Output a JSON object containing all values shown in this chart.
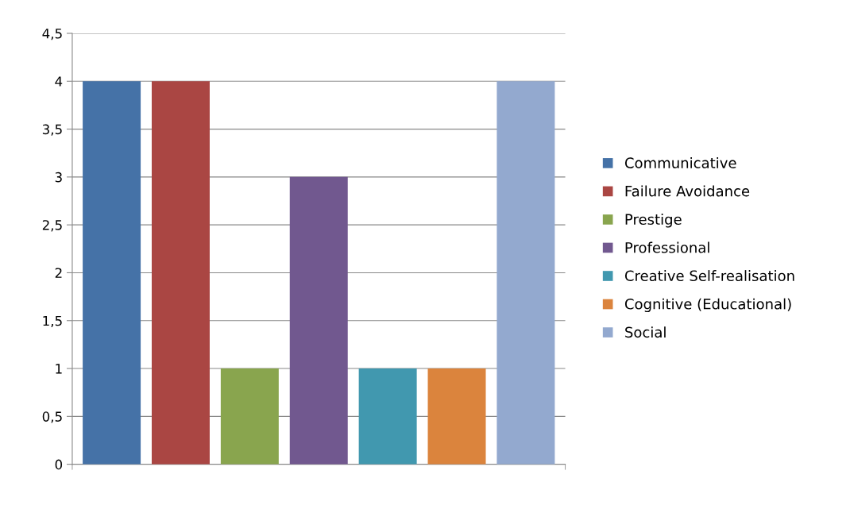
{
  "chart_data": {
    "type": "bar",
    "categories": [
      null
    ],
    "series": [
      {
        "name": "Communicative",
        "color": "#4572a7",
        "values": [
          4
        ]
      },
      {
        "name": "Failure Avoidance",
        "color": "#aa4643",
        "values": [
          4
        ]
      },
      {
        "name": "Prestige",
        "color": "#89a54e",
        "values": [
          1
        ]
      },
      {
        "name": "Professional",
        "color": "#71588f",
        "values": [
          3
        ]
      },
      {
        "name": "Creative Self-realisation",
        "color": "#4198af",
        "values": [
          1
        ]
      },
      {
        "name": "Cognitive (Educational)",
        "color": "#db843d",
        "values": [
          1
        ]
      },
      {
        "name": "Social",
        "color": "#93a9cf",
        "values": [
          4
        ]
      }
    ],
    "ylim": [
      0,
      4.5
    ],
    "yticks": [
      0,
      {
        "value": 0.5,
        "label": "0,5"
      },
      1,
      {
        "value": 1.5,
        "label": "1,5"
      },
      2,
      {
        "value": 2.5,
        "label": "2,5"
      },
      3,
      {
        "value": 3.5,
        "label": "3,5"
      },
      4,
      {
        "value": 4.5,
        "label": "4,5"
      }
    ],
    "grid": "y",
    "legend": "right"
  }
}
